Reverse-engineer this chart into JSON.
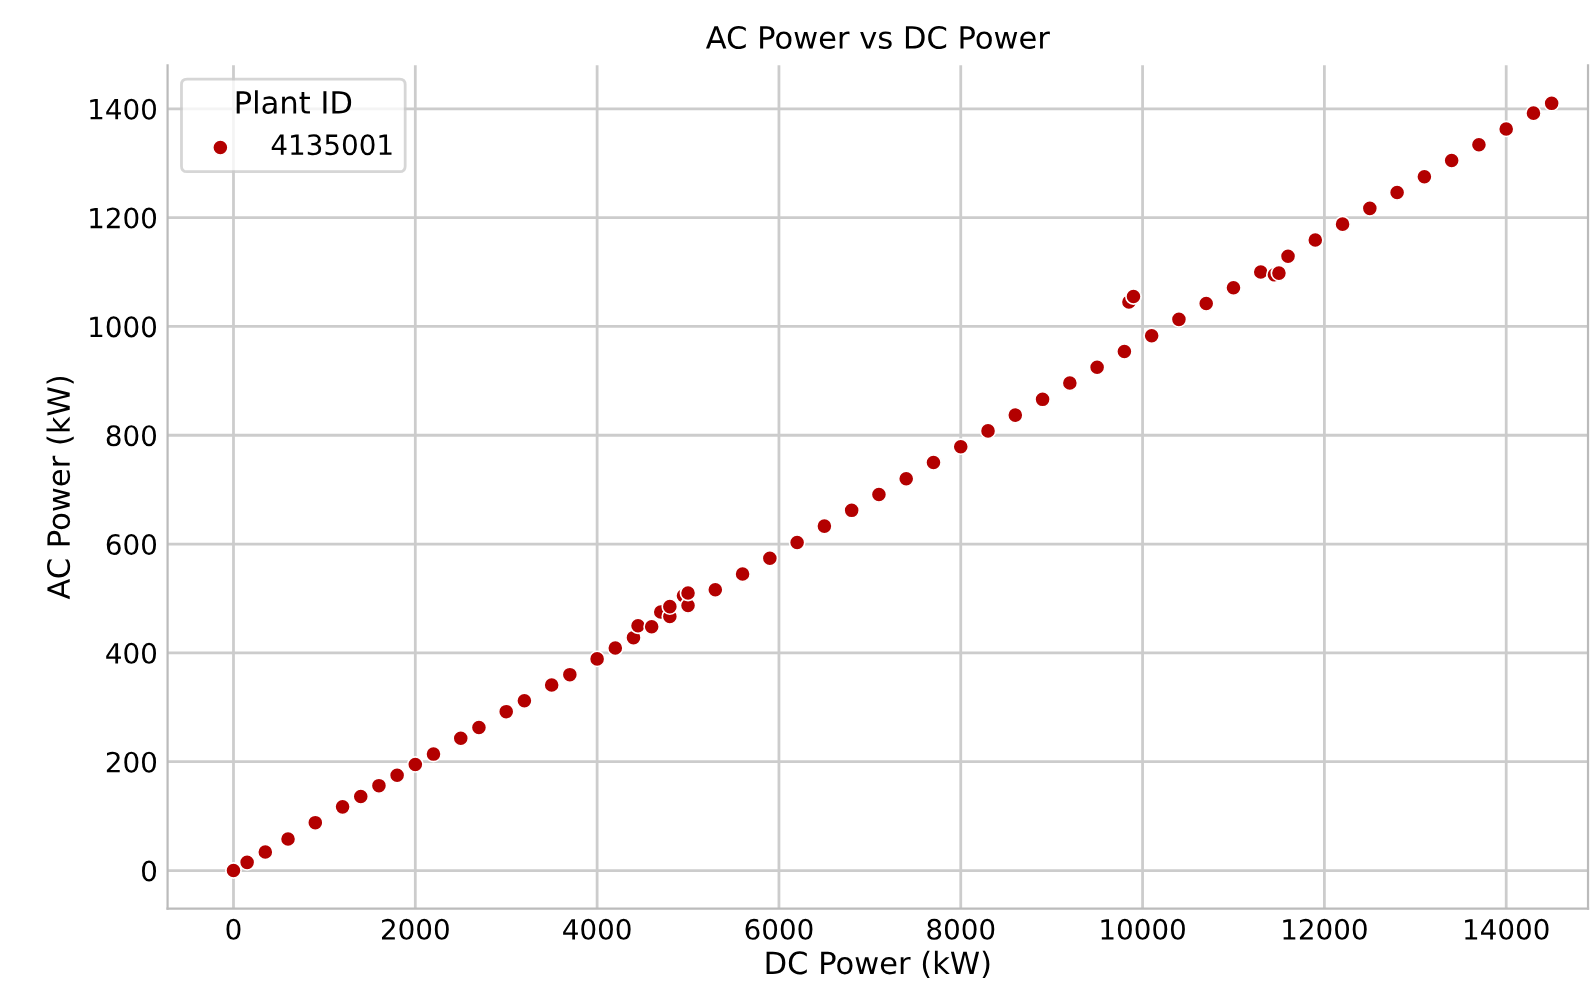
{
  "chart_data": {
    "type": "scatter",
    "title": "AC Power vs DC Power",
    "xlabel": "DC Power (kW)",
    "ylabel": "AC Power (kW)",
    "legend_title": "Plant ID",
    "series": [
      {
        "name": "4135001",
        "color": "#b30000",
        "x": [
          0,
          150,
          350,
          600,
          900,
          1200,
          1400,
          1600,
          1800,
          2000,
          2200,
          2500,
          2700,
          3000,
          3200,
          3500,
          3700,
          4000,
          4200,
          4400,
          4450,
          4600,
          4700,
          4800,
          4800,
          4950,
          5000,
          5000,
          5300,
          5600,
          5900,
          6200,
          6500,
          6800,
          7100,
          7400,
          7700,
          8000,
          8300,
          8600,
          8900,
          9200,
          9500,
          9800,
          9850,
          9900,
          10100,
          10400,
          10700,
          11000,
          11300,
          11450,
          11500,
          11600,
          11900,
          12200,
          12500,
          12800,
          13100,
          13400,
          13700,
          14000,
          14300,
          14500
        ],
        "values": [
          0,
          15,
          34,
          58,
          88,
          117,
          136,
          156,
          175,
          195,
          214,
          243,
          263,
          292,
          312,
          341,
          360,
          389,
          409,
          428,
          450,
          448,
          475,
          467,
          485,
          505,
          487,
          510,
          516,
          545,
          574,
          603,
          633,
          662,
          691,
          720,
          750,
          779,
          808,
          837,
          866,
          896,
          925,
          954,
          1045,
          1055,
          983,
          1013,
          1042,
          1071,
          1100,
          1095,
          1098,
          1129,
          1159,
          1188,
          1217,
          1246,
          1275,
          1305,
          1334,
          1363,
          1392,
          1410
        ]
      }
    ],
    "xlim": [
      -725,
      14900
    ],
    "ylim": [
      -70,
      1480
    ],
    "xticks": [
      0,
      2000,
      4000,
      6000,
      8000,
      10000,
      12000,
      14000
    ],
    "yticks": [
      0,
      200,
      400,
      600,
      800,
      1000,
      1200,
      1400
    ],
    "grid": true,
    "legend": "top left",
    "marker": "circle"
  }
}
